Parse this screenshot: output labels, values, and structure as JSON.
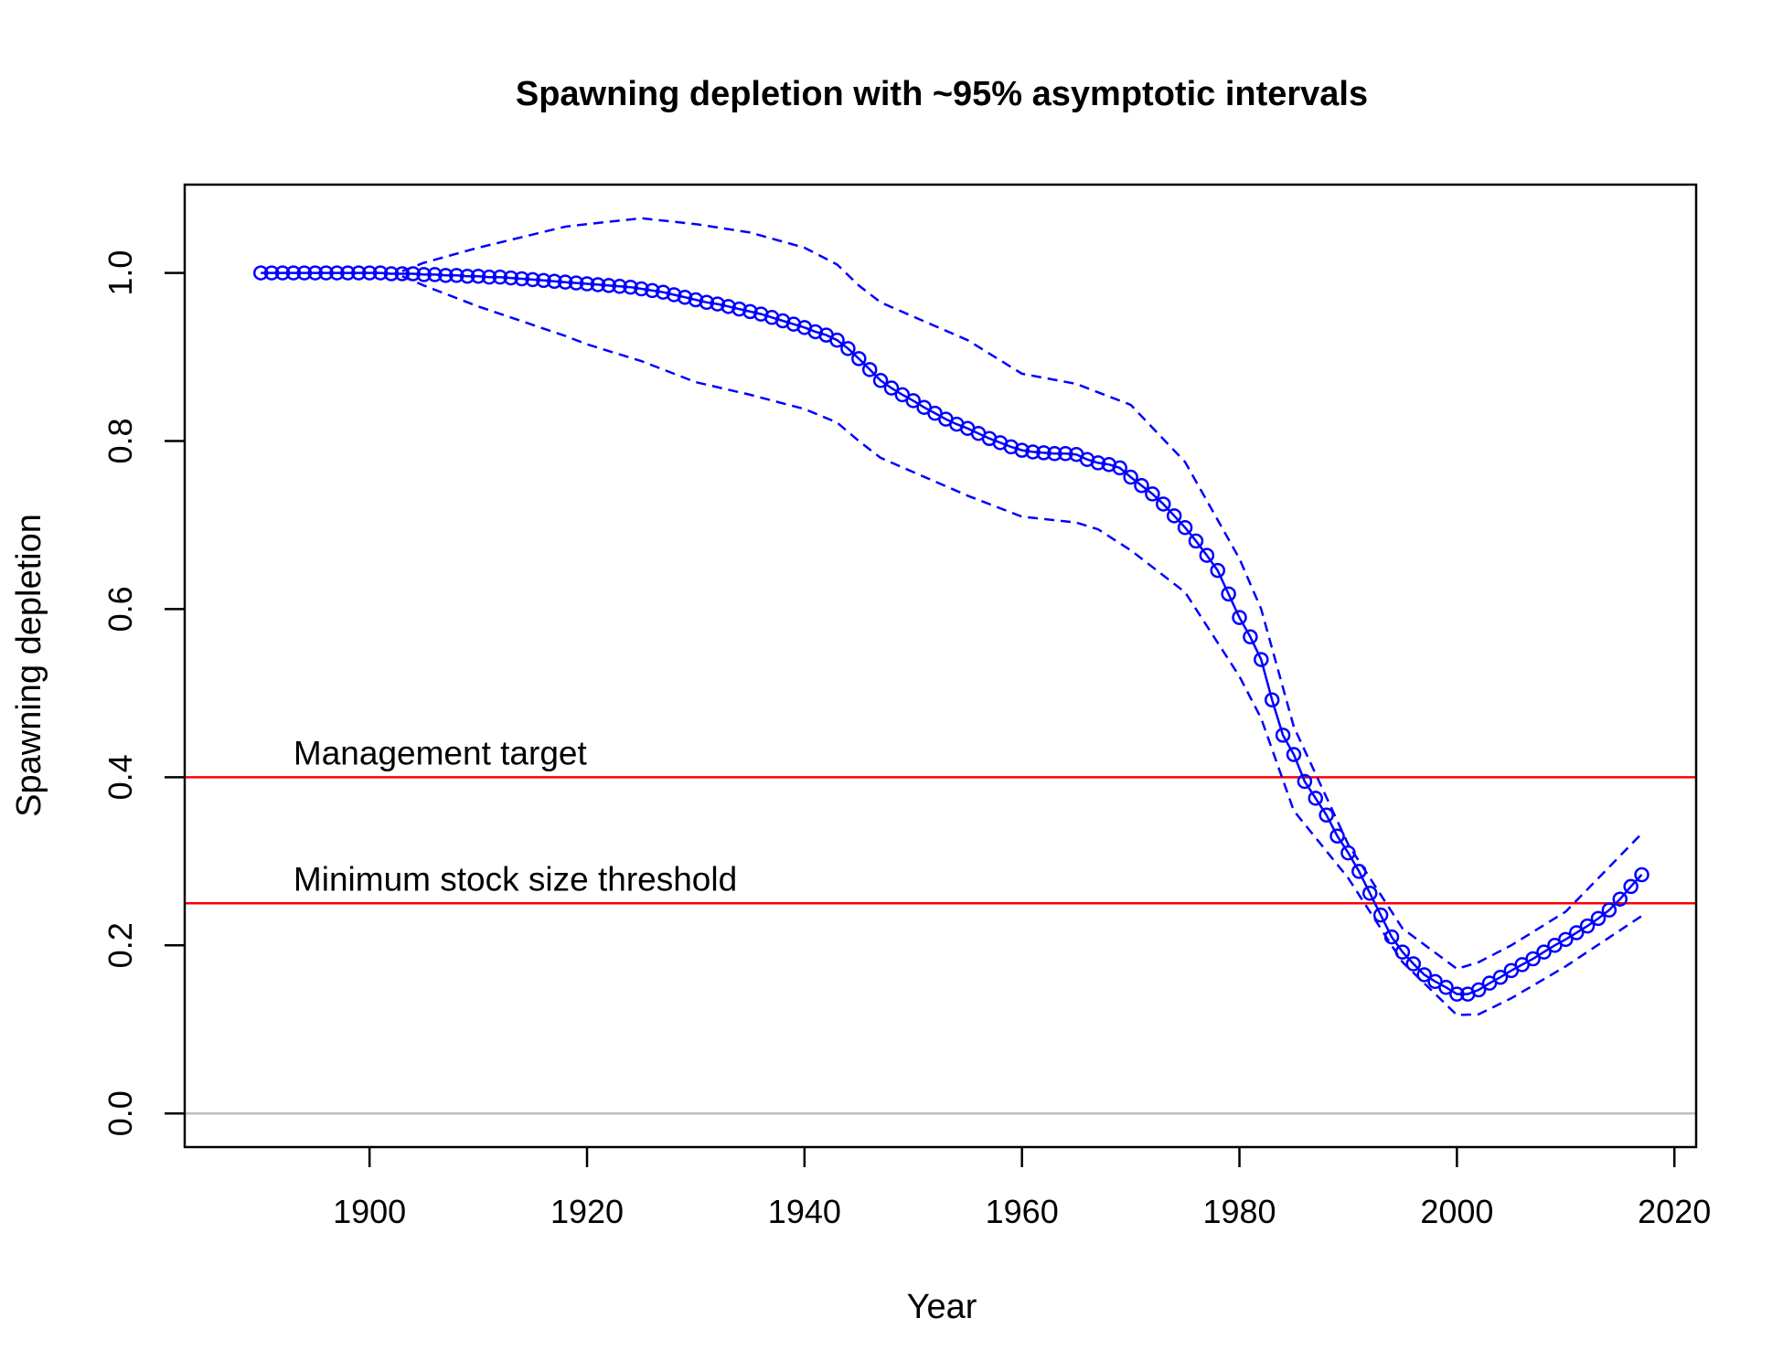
{
  "chart_data": {
    "type": "line",
    "title": "Spawning depletion with ~95% asymptotic intervals",
    "xlabel": "Year",
    "ylabel": "Spawning depletion",
    "xlim": [
      1883,
      2022
    ],
    "ylim": [
      -0.04,
      1.105
    ],
    "x_ticks": [
      1900,
      1920,
      1940,
      1960,
      1980,
      2000,
      2020
    ],
    "y_ticks": [
      0.0,
      0.2,
      0.4,
      0.6,
      0.8,
      1.0
    ],
    "y_tick_labels": [
      "0.0",
      "0.2",
      "0.4",
      "0.6",
      "0.8",
      "1.0"
    ],
    "grid": false,
    "legend": "none",
    "colors": {
      "series": "#0000ff",
      "reference": "#ff0000",
      "zero_line": "#bebebe",
      "axes": "#000000"
    },
    "reference_lines": [
      {
        "y": 0.4,
        "label": "Management target"
      },
      {
        "y": 0.25,
        "label": "Minimum stock size threshold"
      }
    ],
    "series": [
      {
        "role": "estimate",
        "style": "line+points",
        "x": [
          1890,
          1891,
          1892,
          1893,
          1894,
          1895,
          1896,
          1897,
          1898,
          1899,
          1900,
          1901,
          1902,
          1903,
          1904,
          1905,
          1906,
          1907,
          1908,
          1909,
          1910,
          1911,
          1912,
          1913,
          1914,
          1915,
          1916,
          1917,
          1918,
          1919,
          1920,
          1921,
          1922,
          1923,
          1924,
          1925,
          1926,
          1927,
          1928,
          1929,
          1930,
          1931,
          1932,
          1933,
          1934,
          1935,
          1936,
          1937,
          1938,
          1939,
          1940,
          1941,
          1942,
          1943,
          1944,
          1945,
          1946,
          1947,
          1948,
          1949,
          1950,
          1951,
          1952,
          1953,
          1954,
          1955,
          1956,
          1957,
          1958,
          1959,
          1960,
          1961,
          1962,
          1963,
          1964,
          1965,
          1966,
          1967,
          1968,
          1969,
          1970,
          1971,
          1972,
          1973,
          1974,
          1975,
          1976,
          1977,
          1978,
          1979,
          1980,
          1981,
          1982,
          1983,
          1984,
          1985,
          1986,
          1987,
          1988,
          1989,
          1990,
          1991,
          1992,
          1993,
          1994,
          1995,
          1996,
          1997,
          1998,
          1999,
          2000,
          2001,
          2002,
          2003,
          2004,
          2005,
          2006,
          2007,
          2008,
          2009,
          2010,
          2011,
          2012,
          2013,
          2014,
          2015,
          2016,
          2017
        ],
        "y": [
          1.0,
          1.0,
          1.0,
          1.0,
          1.0,
          1.0,
          1.0,
          1.0,
          1.0,
          1.0,
          1.0,
          1.0,
          0.999,
          0.999,
          0.999,
          0.998,
          0.998,
          0.997,
          0.997,
          0.996,
          0.996,
          0.995,
          0.995,
          0.994,
          0.993,
          0.992,
          0.991,
          0.99,
          0.989,
          0.988,
          0.987,
          0.986,
          0.985,
          0.984,
          0.983,
          0.981,
          0.979,
          0.977,
          0.974,
          0.971,
          0.968,
          0.965,
          0.963,
          0.96,
          0.957,
          0.954,
          0.951,
          0.947,
          0.943,
          0.939,
          0.935,
          0.93,
          0.926,
          0.92,
          0.91,
          0.898,
          0.885,
          0.872,
          0.863,
          0.855,
          0.848,
          0.84,
          0.833,
          0.826,
          0.82,
          0.815,
          0.809,
          0.803,
          0.798,
          0.793,
          0.789,
          0.787,
          0.786,
          0.785,
          0.785,
          0.784,
          0.778,
          0.774,
          0.772,
          0.768,
          0.757,
          0.747,
          0.737,
          0.725,
          0.711,
          0.697,
          0.681,
          0.664,
          0.646,
          0.618,
          0.59,
          0.567,
          0.54,
          0.492,
          0.45,
          0.427,
          0.395,
          0.375,
          0.355,
          0.33,
          0.31,
          0.288,
          0.262,
          0.236,
          0.21,
          0.192,
          0.178,
          0.165,
          0.157,
          0.15,
          0.142,
          0.142,
          0.147,
          0.155,
          0.162,
          0.17,
          0.177,
          0.184,
          0.192,
          0.2,
          0.207,
          0.215,
          0.223,
          0.232,
          0.242,
          0.255,
          0.27,
          0.284
        ]
      },
      {
        "role": "upper-interval",
        "style": "dashed",
        "x": [
          1903,
          1905,
          1910,
          1918,
          1920,
          1925,
          1930,
          1935,
          1940,
          1943,
          1945,
          1947,
          1950,
          1955,
          1960,
          1965,
          1967,
          1970,
          1975,
          1980,
          1982,
          1985,
          1990,
          1995,
          2000,
          2002,
          2005,
          2010,
          2017
        ],
        "y": [
          1.002,
          1.012,
          1.03,
          1.055,
          1.058,
          1.065,
          1.058,
          1.048,
          1.03,
          1.01,
          0.985,
          0.965,
          0.948,
          0.92,
          0.88,
          0.868,
          0.858,
          0.843,
          0.775,
          0.66,
          0.6,
          0.46,
          0.32,
          0.22,
          0.172,
          0.18,
          0.2,
          0.24,
          0.333
        ]
      },
      {
        "role": "lower-interval",
        "style": "dashed",
        "x": [
          1903,
          1905,
          1910,
          1918,
          1920,
          1925,
          1930,
          1935,
          1940,
          1943,
          1945,
          1947,
          1950,
          1955,
          1960,
          1965,
          1967,
          1970,
          1975,
          1980,
          1982,
          1985,
          1990,
          1995,
          2000,
          2002,
          2005,
          2010,
          2017
        ],
        "y": [
          0.996,
          0.985,
          0.96,
          0.925,
          0.915,
          0.895,
          0.87,
          0.855,
          0.838,
          0.822,
          0.8,
          0.78,
          0.763,
          0.735,
          0.71,
          0.703,
          0.695,
          0.67,
          0.62,
          0.52,
          0.47,
          0.36,
          0.28,
          0.18,
          0.117,
          0.118,
          0.137,
          0.175,
          0.235
        ]
      }
    ]
  }
}
